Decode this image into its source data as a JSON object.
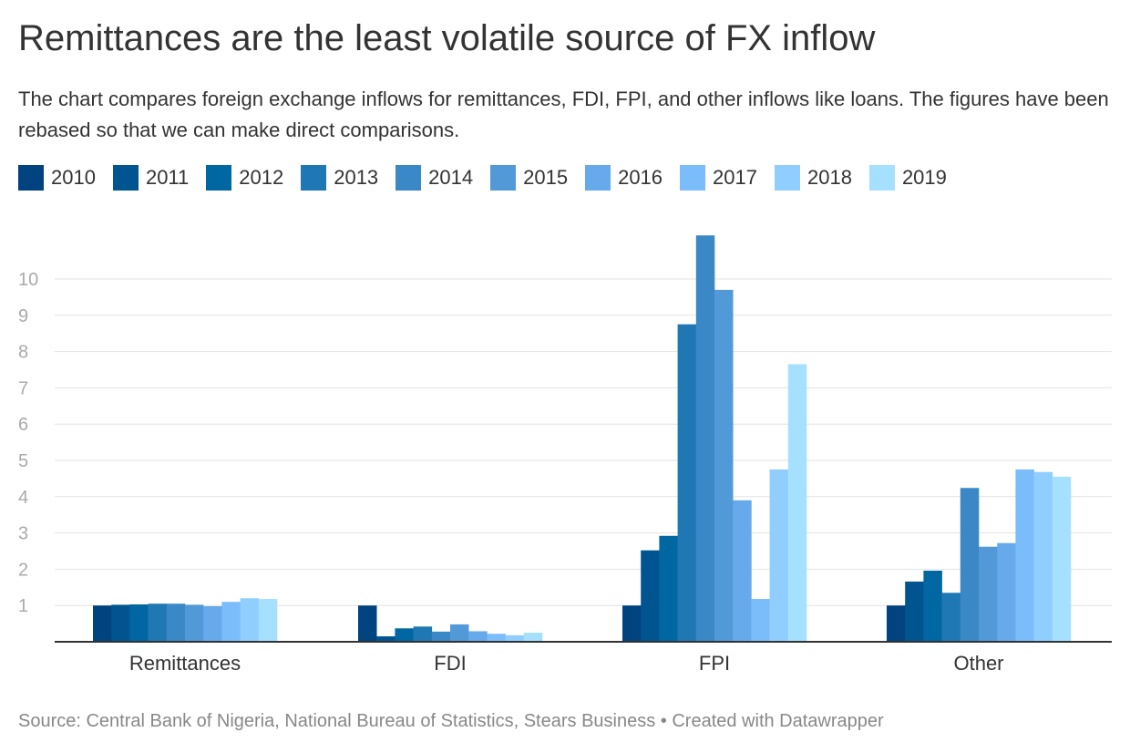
{
  "header": {
    "title": "Remittances are the least volatile source of FX inflow",
    "subtitle": "The chart compares foreign exchange inflows for remittances, FDI, FPI, and other inflows like loans. The figures have been rebased so that we can make direct comparisons."
  },
  "footer": {
    "source": "Source: Central Bank of Nigeria, National Bureau of Statistics, Stears Business • Created with Datawrapper"
  },
  "colors": {
    "2010": "#00437e",
    "2011": "#005591",
    "2012": "#0067a2",
    "2013": "#1f78b4",
    "2014": "#3a88c6",
    "2015": "#5199d7",
    "2016": "#67aaeb",
    "2017": "#7bbcfb",
    "2018": "#90ceff",
    "2019": "#a5e0ff"
  },
  "chart_data": {
    "type": "bar",
    "categories": [
      "Remittances",
      "FDI",
      "FPI",
      "Other"
    ],
    "y_ticks": [
      "1",
      "2",
      "3",
      "4",
      "5",
      "6",
      "7",
      "8",
      "9",
      "10"
    ],
    "ylim": [
      0,
      11.5
    ],
    "grid": true,
    "legend_position": "top-left",
    "series": [
      {
        "name": "2010",
        "color": "#00437e",
        "values": [
          1.0,
          1.0,
          1.0,
          1.0
        ]
      },
      {
        "name": "2011",
        "color": "#005591",
        "values": [
          1.02,
          0.15,
          2.52,
          1.66
        ]
      },
      {
        "name": "2012",
        "color": "#0067a2",
        "values": [
          1.03,
          0.37,
          2.92,
          1.96
        ]
      },
      {
        "name": "2013",
        "color": "#1f78b4",
        "values": [
          1.05,
          0.42,
          8.75,
          1.35
        ]
      },
      {
        "name": "2014",
        "color": "#3a88c6",
        "values": [
          1.05,
          0.28,
          11.2,
          4.24
        ]
      },
      {
        "name": "2015",
        "color": "#5199d7",
        "values": [
          1.02,
          0.48,
          9.7,
          2.62
        ]
      },
      {
        "name": "2016",
        "color": "#67aaeb",
        "values": [
          0.98,
          0.29,
          3.9,
          2.72
        ]
      },
      {
        "name": "2017",
        "color": "#7bbcfb",
        "values": [
          1.1,
          0.22,
          1.18,
          4.75
        ]
      },
      {
        "name": "2018",
        "color": "#90ceff",
        "values": [
          1.2,
          0.18,
          4.75,
          4.68
        ]
      },
      {
        "name": "2019",
        "color": "#a5e0ff",
        "values": [
          1.18,
          0.25,
          7.65,
          4.55
        ]
      }
    ]
  }
}
